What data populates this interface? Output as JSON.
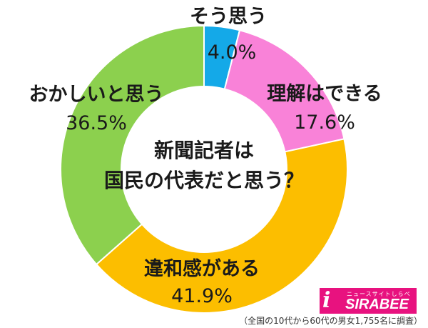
{
  "chart_data": {
    "type": "pie",
    "title": "新聞記者は国民の代表だと思う？",
    "title_lines": [
      "新聞記者は",
      "国民の代表だと思う？"
    ],
    "categories": [
      "そう思う",
      "理解はできる",
      "違和感がある",
      "おかしいと思う"
    ],
    "values": [
      4.0,
      17.6,
      41.9,
      36.5
    ],
    "value_labels": [
      "4.0%",
      "17.6%",
      "41.9%",
      "36.5%"
    ],
    "colors": [
      "#14a9e8",
      "#f982d8",
      "#fcbe00",
      "#8cd04e"
    ],
    "donut": true
  },
  "logo": {
    "sub": "ニュースサイトしらべぇ",
    "main": "SIRABEE",
    "icon": "i-letter-icon"
  },
  "footnote": "（全国の10代から60代の男女1,755名に調査）"
}
